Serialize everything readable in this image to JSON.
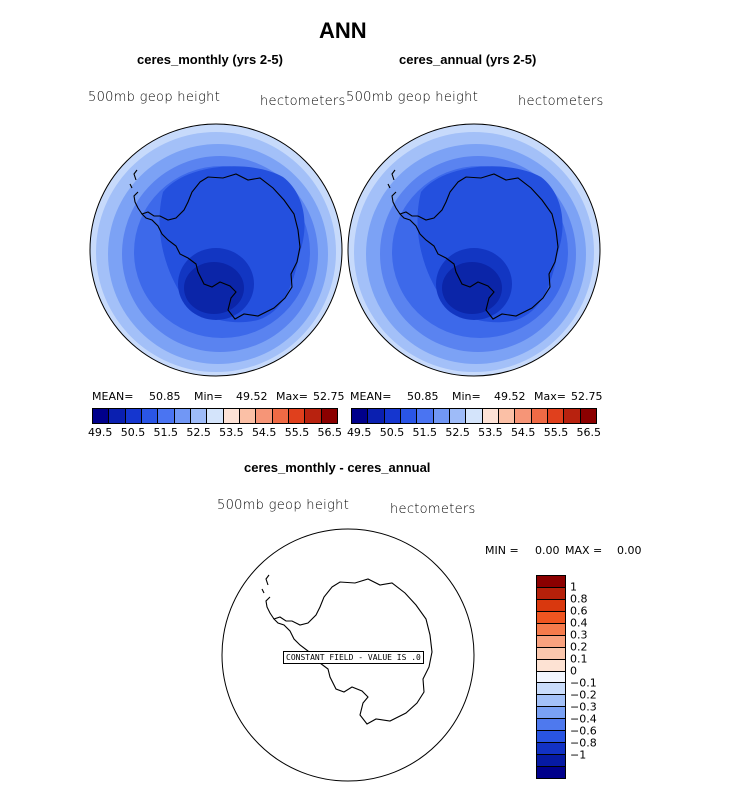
{
  "figure_title": "ANN",
  "panels": [
    {
      "title": "ceres_monthly (yrs 2-5)",
      "variable_label": "500mb geop height",
      "units": "hectometers",
      "stats": {
        "mean_label": "MEAN=",
        "mean": "50.85",
        "min_label": "Min=",
        "min": "49.52",
        "max_label": "Max=",
        "max": "52.75"
      }
    },
    {
      "title": "ceres_annual (yrs 2-5)",
      "variable_label": "500mb geop height",
      "units": "hectometers",
      "stats": {
        "mean_label": "MEAN=",
        "mean": "50.85",
        "min_label": "Min=",
        "min": "49.52",
        "max_label": "Max=",
        "max": "52.75"
      }
    }
  ],
  "field_colorbar": {
    "colors": [
      "#00008b",
      "#0a1fb0",
      "#1536cf",
      "#2a55e6",
      "#4a74f2",
      "#7197f5",
      "#9ebbf8",
      "#d4e4fb",
      "#fde2d6",
      "#fbc0a6",
      "#f69577",
      "#ef6a45",
      "#e0401d",
      "#b8220f",
      "#8b0000"
    ],
    "tick_labels": [
      "49.5",
      "50.5",
      "51.5",
      "52.5",
      "53.5",
      "54.5",
      "55.5",
      "56.5"
    ]
  },
  "diff_panel": {
    "title": "ceres_monthly - ceres_annual",
    "variable_label": "500mb geop height",
    "units": "hectometers",
    "min_label": "MIN =",
    "min": "0.00",
    "max_label": "MAX =",
    "max": "0.00",
    "constant_label": "CONSTANT FIELD - VALUE IS .0"
  },
  "diff_colorbar": {
    "colors": [
      "#8b0000",
      "#b5200a",
      "#d9380e",
      "#f05520",
      "#f67b4c",
      "#f9a27f",
      "#fbc7ad",
      "#fde2d3",
      "#f2f6ff",
      "#c9dcfb",
      "#a3c1f8",
      "#7aa1f4",
      "#4e79ee",
      "#2954e2",
      "#1232c4",
      "#061aa3",
      "#00008b"
    ],
    "tick_labels": [
      "1",
      "0.8",
      "0.6",
      "0.4",
      "0.3",
      "0.2",
      "0.1",
      "0",
      "-0.1",
      "-0.2",
      "-0.3",
      "-0.4",
      "-0.6",
      "-0.8",
      "-1"
    ]
  }
}
